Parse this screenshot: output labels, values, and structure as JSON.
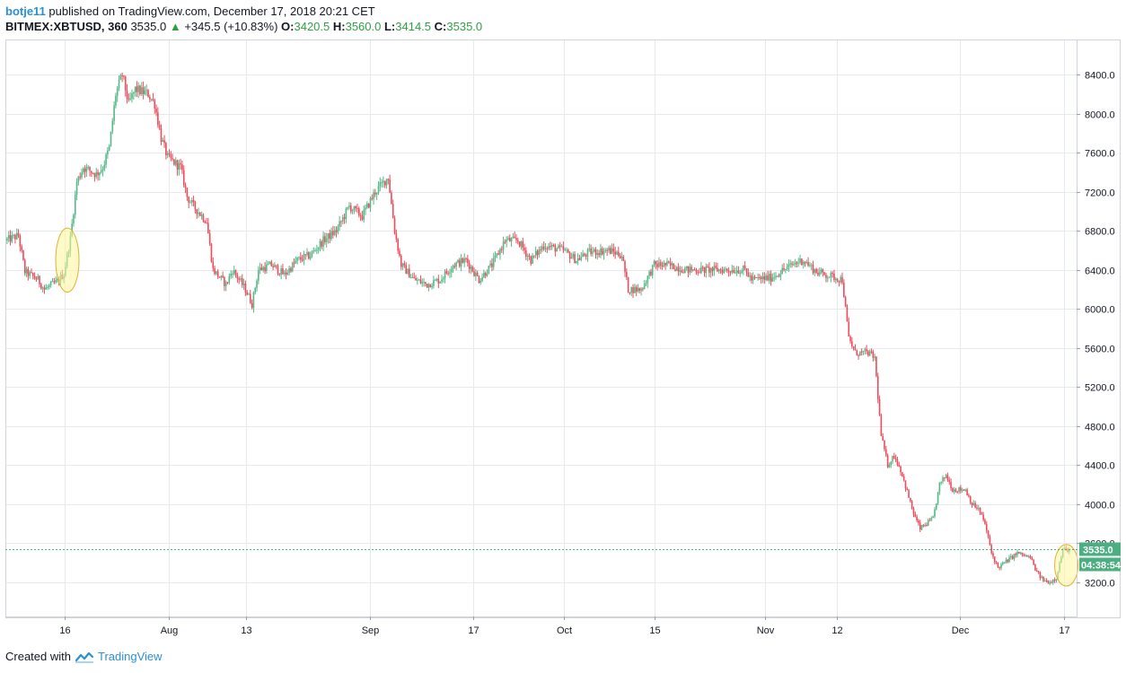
{
  "header": {
    "author": "botje11",
    "published_text": "published on TradingView.com, December 17, 2018 20:21 CET",
    "symbol": "BITMEX:XBTUSD, 360",
    "last": "3535.0",
    "change": "+345.5 (+10.83%)",
    "o_label": "O:",
    "o_value": "3420.5",
    "h_label": "H:",
    "h_value": "3560.0",
    "l_label": "L:",
    "l_value": "3414.5",
    "c_label": "C:",
    "c_value": "3535.0"
  },
  "footer": {
    "created_with": "Created with",
    "brand": "TradingView"
  },
  "price_badge": "3535.0",
  "countdown_badge": "04:38:54",
  "colors": {
    "up": "#53b987",
    "down": "#eb4d5c",
    "grid": "#e6e9ef",
    "badge": "#4caf82",
    "highlight_fill": "#fff59a",
    "highlight_stroke": "#e0b030"
  },
  "chart_data": {
    "type": "candlestick",
    "y_axis": {
      "ticks": [
        3200,
        3600,
        4000,
        4400,
        4800,
        5200,
        5600,
        6000,
        6400,
        6800,
        7200,
        7600,
        8000,
        8400
      ],
      "tick_labels": [
        "3200.0",
        "3600.0",
        "4000.0",
        "4400.0",
        "4800.0",
        "5200.0",
        "5600.0",
        "6000.0",
        "6400.0",
        "6800.0",
        "7200.0",
        "7600.0",
        "8000.0",
        "8400.0"
      ],
      "range": [
        2850,
        8750
      ]
    },
    "x_axis": {
      "tick_labels": [
        "16",
        "Aug",
        "13",
        "Sep",
        "17",
        "Oct",
        "15",
        "Nov",
        "12",
        "Dec",
        "17"
      ],
      "tick_dates": [
        "2018-07-16",
        "2018-08-01",
        "2018-08-13",
        "2018-09-01",
        "2018-09-17",
        "2018-10-01",
        "2018-10-15",
        "2018-11-01",
        "2018-11-12",
        "2018-12-01",
        "2018-12-17"
      ],
      "range": [
        "2018-07-07",
        "2018-12-19"
      ]
    },
    "current_price": 3535.0,
    "grid": true,
    "anchors": [
      [
        "2018-07-07",
        6700
      ],
      [
        "2018-07-09",
        6750
      ],
      [
        "2018-07-10",
        6380
      ],
      [
        "2018-07-12",
        6300
      ],
      [
        "2018-07-13",
        6200
      ],
      [
        "2018-07-15",
        6280
      ],
      [
        "2018-07-16",
        6360
      ],
      [
        "2018-07-17",
        6720
      ],
      [
        "2018-07-18",
        7300
      ],
      [
        "2018-07-19",
        7450
      ],
      [
        "2018-07-21",
        7380
      ],
      [
        "2018-07-22",
        7450
      ],
      [
        "2018-07-23",
        7650
      ],
      [
        "2018-07-24",
        8200
      ],
      [
        "2018-07-25",
        8400
      ],
      [
        "2018-07-26",
        8100
      ],
      [
        "2018-07-27",
        8250
      ],
      [
        "2018-07-29",
        8200
      ],
      [
        "2018-07-30",
        8100
      ],
      [
        "2018-07-31",
        7750
      ],
      [
        "2018-08-01",
        7550
      ],
      [
        "2018-08-03",
        7450
      ],
      [
        "2018-08-04",
        7150
      ],
      [
        "2018-08-05",
        7050
      ],
      [
        "2018-08-07",
        6900
      ],
      [
        "2018-08-08",
        6400
      ],
      [
        "2018-08-10",
        6250
      ],
      [
        "2018-08-11",
        6400
      ],
      [
        "2018-08-13",
        6200
      ],
      [
        "2018-08-14",
        6050
      ],
      [
        "2018-08-15",
        6400
      ],
      [
        "2018-08-17",
        6450
      ],
      [
        "2018-08-19",
        6350
      ],
      [
        "2018-08-21",
        6500
      ],
      [
        "2018-08-23",
        6550
      ],
      [
        "2018-08-25",
        6700
      ],
      [
        "2018-08-27",
        6800
      ],
      [
        "2018-08-29",
        7050
      ],
      [
        "2018-08-31",
        6950
      ],
      [
        "2018-09-02",
        7200
      ],
      [
        "2018-09-04",
        7350
      ],
      [
        "2018-09-05",
        6800
      ],
      [
        "2018-09-06",
        6450
      ],
      [
        "2018-09-08",
        6300
      ],
      [
        "2018-09-10",
        6250
      ],
      [
        "2018-09-12",
        6300
      ],
      [
        "2018-09-14",
        6450
      ],
      [
        "2018-09-16",
        6500
      ],
      [
        "2018-09-18",
        6300
      ],
      [
        "2018-09-20",
        6450
      ],
      [
        "2018-09-22",
        6700
      ],
      [
        "2018-09-24",
        6700
      ],
      [
        "2018-09-26",
        6500
      ],
      [
        "2018-09-28",
        6650
      ],
      [
        "2018-10-01",
        6600
      ],
      [
        "2018-10-03",
        6500
      ],
      [
        "2018-10-05",
        6580
      ],
      [
        "2018-10-08",
        6600
      ],
      [
        "2018-10-10",
        6550
      ],
      [
        "2018-10-11",
        6200
      ],
      [
        "2018-10-13",
        6200
      ],
      [
        "2018-10-15",
        6450
      ],
      [
        "2018-10-17",
        6450
      ],
      [
        "2018-10-20",
        6400
      ],
      [
        "2018-10-25",
        6400
      ],
      [
        "2018-10-29",
        6400
      ],
      [
        "2018-10-30",
        6300
      ],
      [
        "2018-11-02",
        6320
      ],
      [
        "2018-11-04",
        6400
      ],
      [
        "2018-11-06",
        6480
      ],
      [
        "2018-11-07",
        6500
      ],
      [
        "2018-11-09",
        6380
      ],
      [
        "2018-11-13",
        6300
      ],
      [
        "2018-11-14",
        5700
      ],
      [
        "2018-11-15",
        5550
      ],
      [
        "2018-11-17",
        5550
      ],
      [
        "2018-11-18",
        5500
      ],
      [
        "2018-11-19",
        4700
      ],
      [
        "2018-11-20",
        4400
      ],
      [
        "2018-11-21",
        4500
      ],
      [
        "2018-11-22",
        4350
      ],
      [
        "2018-11-24",
        3900
      ],
      [
        "2018-11-25",
        3750
      ],
      [
        "2018-11-26",
        3800
      ],
      [
        "2018-11-27",
        3850
      ],
      [
        "2018-11-28",
        4200
      ],
      [
        "2018-11-29",
        4300
      ],
      [
        "2018-11-30",
        4150
      ],
      [
        "2018-12-02",
        4150
      ],
      [
        "2018-12-03",
        4000
      ],
      [
        "2018-12-04",
        3950
      ],
      [
        "2018-12-05",
        3800
      ],
      [
        "2018-12-06",
        3500
      ],
      [
        "2018-12-07",
        3350
      ],
      [
        "2018-12-08",
        3400
      ],
      [
        "2018-12-10",
        3500
      ],
      [
        "2018-12-12",
        3450
      ],
      [
        "2018-12-13",
        3300
      ],
      [
        "2018-12-14",
        3220
      ],
      [
        "2018-12-15",
        3200
      ],
      [
        "2018-12-16",
        3250
      ],
      [
        "2018-12-17",
        3535
      ]
    ],
    "annotations": [
      {
        "type": "ellipse",
        "date": "2018-07-16",
        "price_low": 6200,
        "price_high": 6800
      },
      {
        "type": "ellipse",
        "date": "2018-12-17",
        "price_low": 3190,
        "price_high": 3560
      }
    ]
  }
}
